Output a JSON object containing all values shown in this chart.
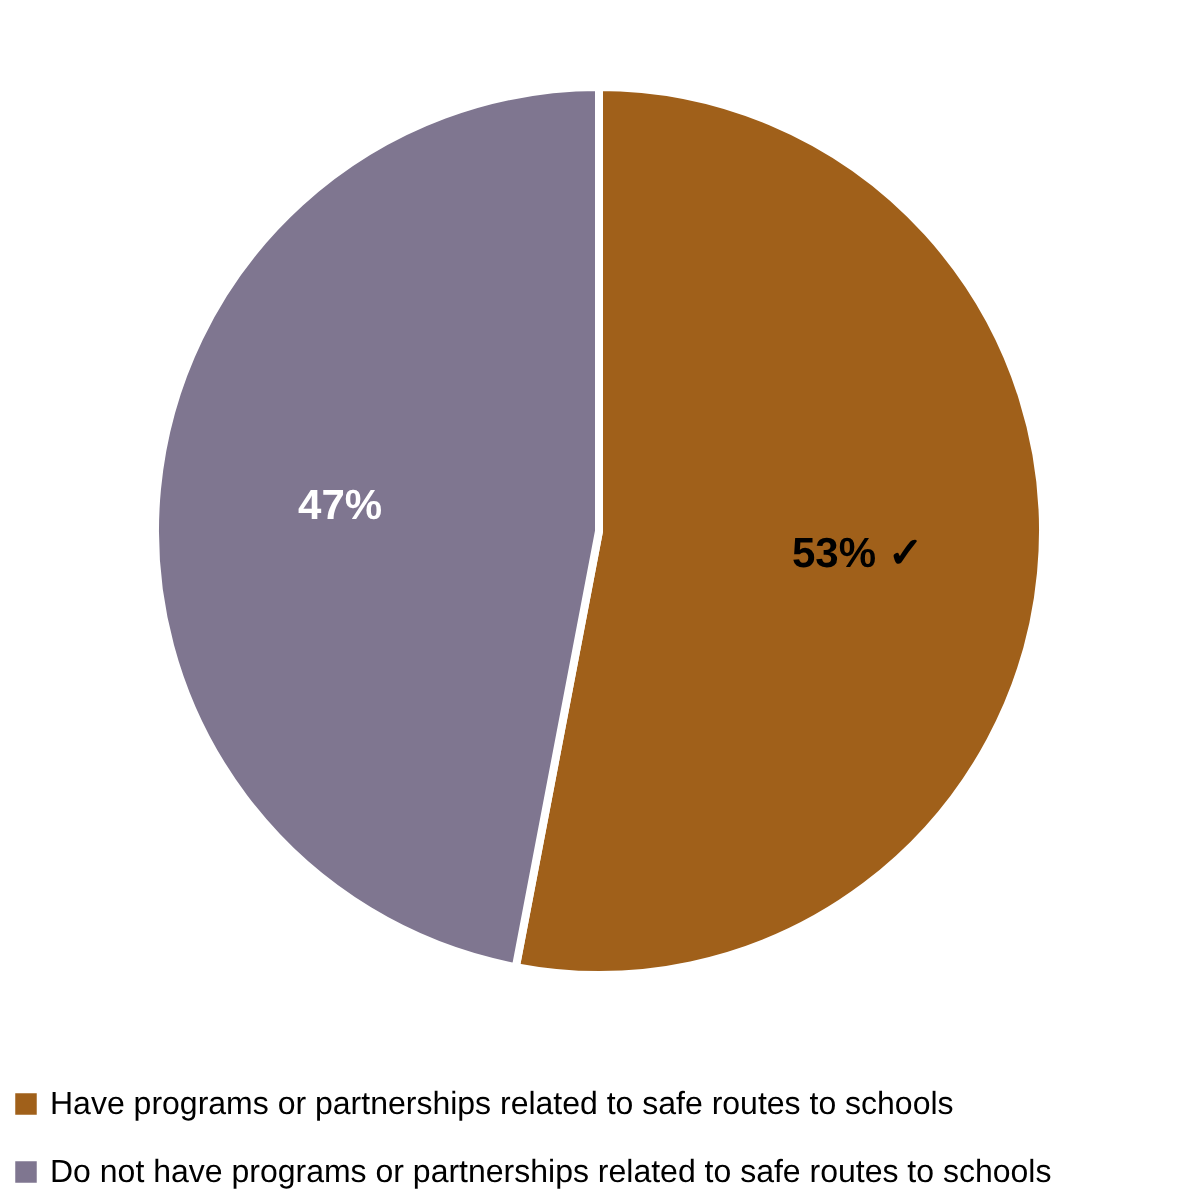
{
  "chart_data": {
    "type": "pie",
    "categories": [
      "Have programs or partnerships related to safe routes to schools",
      "Do not have programs or partnerships related to safe routes to schools"
    ],
    "values": [
      53,
      47
    ],
    "colors": [
      "#a0601a",
      "#7f7690"
    ],
    "value_labels": [
      "53% ✓",
      "47%"
    ],
    "legend": "bottom"
  }
}
